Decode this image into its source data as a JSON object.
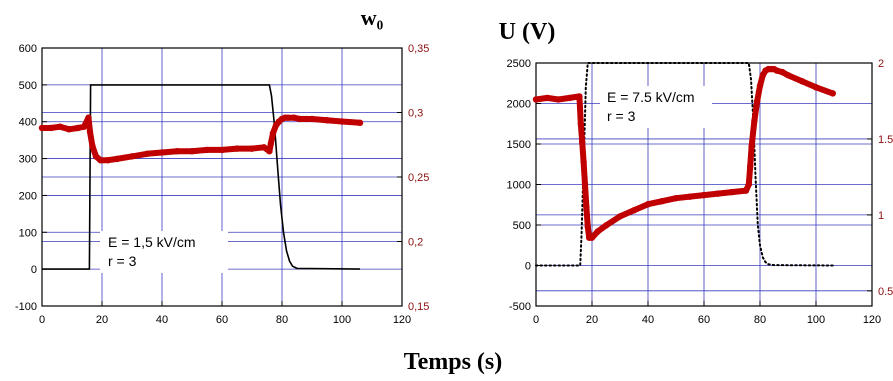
{
  "figure": {
    "xlabel": "Temps (s)",
    "colors": {
      "voltage": "#000000",
      "w": "#c00000",
      "grid": "#3b3bbf",
      "right_axis": "#8b1010"
    }
  },
  "chart_data": [
    {
      "type": "line",
      "title": "",
      "ylabel_right": "w₀",
      "annotation": [
        "E = 1,5 kV/cm",
        "r = 3"
      ],
      "xlim": [
        0,
        120
      ],
      "ylim": [
        -100,
        600
      ],
      "ylim_right": [
        0.15,
        0.35
      ],
      "xticks": [
        "0",
        "20",
        "40",
        "60",
        "80",
        "100",
        "120"
      ],
      "yticks": [
        "-100",
        "0",
        "100",
        "200",
        "300",
        "400",
        "500",
        "600"
      ],
      "yticks_right": [
        "0,15",
        "0,2",
        "0,25",
        "0,3",
        "0,35"
      ],
      "grid": true,
      "series": [
        {
          "axis": "left",
          "style": "solid",
          "x": [
            0,
            15.8,
            16.2,
            75.8,
            76.5,
            77.5,
            78.5,
            79.5,
            80.5,
            81.5,
            82.5,
            83.5,
            85,
            106
          ],
          "y": [
            0,
            0,
            500,
            500,
            470,
            390,
            280,
            175,
            100,
            50,
            22,
            8,
            2,
            0
          ]
        },
        {
          "axis": "right",
          "style": "markers",
          "x": [
            0,
            3,
            6,
            9,
            12,
            14,
            15.5,
            16,
            16.8,
            18,
            19.5,
            22,
            25,
            30,
            35,
            40,
            45,
            50,
            55,
            60,
            65,
            70,
            74,
            75.8,
            76.3,
            77,
            78,
            79,
            80,
            81,
            82,
            84,
            86,
            88,
            90,
            95,
            100,
            106
          ],
          "y": [
            0.288,
            0.288,
            0.289,
            0.287,
            0.288,
            0.289,
            0.296,
            0.285,
            0.274,
            0.266,
            0.263,
            0.263,
            0.264,
            0.266,
            0.268,
            0.269,
            0.27,
            0.27,
            0.271,
            0.271,
            0.272,
            0.272,
            0.273,
            0.27,
            0.276,
            0.284,
            0.29,
            0.293,
            0.295,
            0.296,
            0.296,
            0.296,
            0.295,
            0.295,
            0.295,
            0.294,
            0.293,
            0.292
          ]
        }
      ]
    },
    {
      "type": "line",
      "title": "U (V)",
      "annotation": [
        "E = 7.5 kV/cm",
        "r = 3"
      ],
      "xlim": [
        0,
        120
      ],
      "ylim": [
        -500,
        2500
      ],
      "ylim_right": [
        0.4,
        2
      ],
      "xticks": [
        "0",
        "20",
        "40",
        "60",
        "80",
        "100",
        "120"
      ],
      "yticks": [
        "-500",
        "0",
        "500",
        "1000",
        "1500",
        "2000",
        "2500"
      ],
      "yticks_right": [
        "0.5",
        "1",
        "1.5",
        "2"
      ],
      "grid": true,
      "series": [
        {
          "axis": "left",
          "style": "dotted",
          "x": [
            0,
            15.8,
            16.3,
            17.2,
            17.8,
            18.5,
            76,
            76.8,
            77.6,
            78.4,
            79.2,
            80,
            81,
            82,
            83,
            85,
            106
          ],
          "y": [
            0,
            0,
            400,
            1500,
            2200,
            2500,
            2500,
            2300,
            1800,
            1100,
            500,
            250,
            100,
            40,
            15,
            5,
            0
          ]
        },
        {
          "axis": "right",
          "style": "markers",
          "x": [
            0,
            4,
            8,
            12,
            15.5,
            16,
            16.5,
            17,
            17.5,
            18,
            18.5,
            19,
            20,
            22,
            25,
            30,
            35,
            40,
            45,
            50,
            55,
            60,
            65,
            70,
            75,
            76,
            76.5,
            77,
            78,
            79,
            80,
            81,
            82,
            83,
            84,
            85,
            86,
            88,
            90,
            95,
            100,
            106
          ],
          "y": [
            1.76,
            1.77,
            1.76,
            1.77,
            1.78,
            1.6,
            1.48,
            1.35,
            1.2,
            1.05,
            0.92,
            0.85,
            0.85,
            0.89,
            0.93,
            0.99,
            1.03,
            1.07,
            1.09,
            1.11,
            1.12,
            1.13,
            1.14,
            1.15,
            1.16,
            1.2,
            1.32,
            1.45,
            1.62,
            1.75,
            1.85,
            1.92,
            1.95,
            1.96,
            1.96,
            1.96,
            1.95,
            1.94,
            1.92,
            1.88,
            1.84,
            1.8
          ]
        }
      ]
    }
  ]
}
